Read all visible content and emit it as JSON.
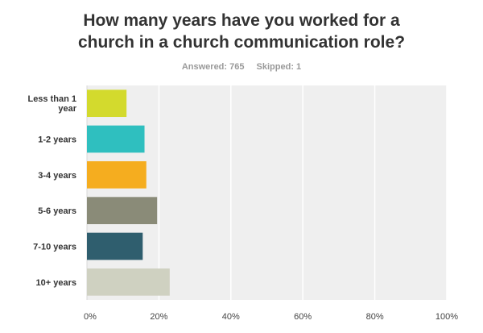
{
  "survey": {
    "title_line1": "How many years have you worked for a",
    "title_line2": "church in a church communication role?",
    "answered": "Answered: 765",
    "skipped": "Skipped: 1"
  },
  "chart_data": {
    "type": "bar",
    "orientation": "horizontal",
    "categories": [
      [
        "Less than 1",
        "year"
      ],
      [
        "1-2 years"
      ],
      [
        "3-4 years"
      ],
      [
        "5-6 years"
      ],
      [
        "7-10 years"
      ],
      [
        "10+ years"
      ]
    ],
    "values": [
      11,
      16,
      16.5,
      19.5,
      15.5,
      23
    ],
    "colors": [
      "#d3da2d",
      "#2fbfbf",
      "#f5ad1f",
      "#8a8b78",
      "#2f5e6e",
      "#cfd1c1"
    ],
    "xlim": [
      0,
      100
    ],
    "x_ticks": [
      0,
      20,
      40,
      60,
      80,
      100
    ],
    "x_tick_labels": [
      "0%",
      "20%",
      "40%",
      "60%",
      "80%",
      "100%"
    ],
    "grid": true,
    "plot_background": "#efefef"
  }
}
